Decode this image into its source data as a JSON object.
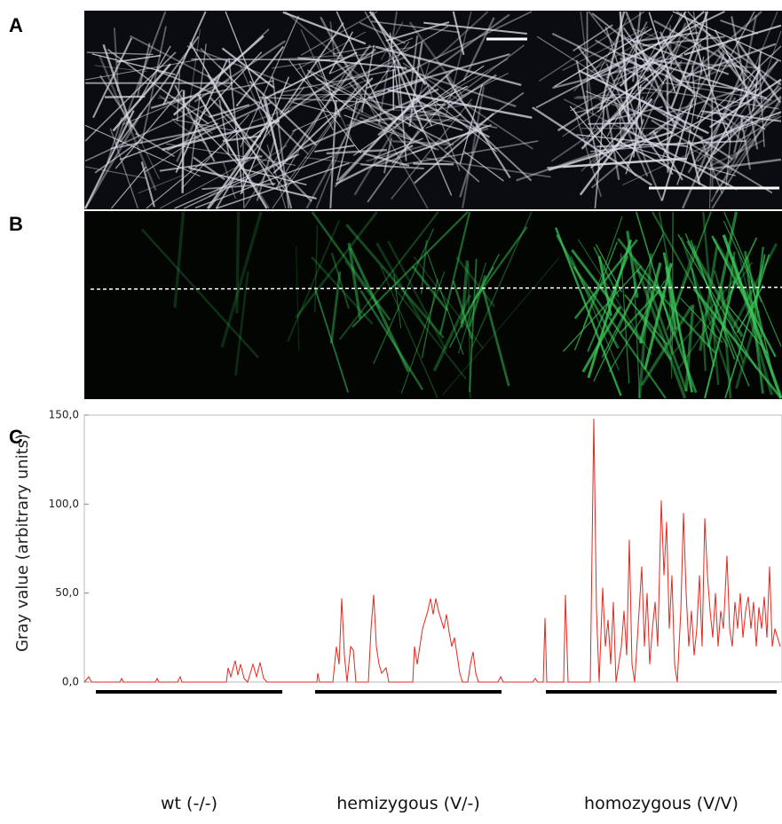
{
  "panel_labels": [
    "A",
    "B",
    "C"
  ],
  "chart_data": {
    "type": "line",
    "ylabel": "Gray value (arbitrary units)",
    "groups": [
      "wt (-/-)",
      "hemizygous (V/-)",
      "homozygous (V/V)"
    ],
    "xlim": [
      0,
      786
    ],
    "ylim": [
      0,
      150
    ],
    "yticks": [
      {
        "value": 0,
        "label": "0,0"
      },
      {
        "value": 50,
        "label": "50,0"
      },
      {
        "value": 100,
        "label": "100,0"
      },
      {
        "value": 150,
        "label": "150,0"
      }
    ],
    "color": "#e8261c",
    "x": [
      0,
      5,
      8,
      40,
      42,
      44,
      80,
      82,
      84,
      105,
      108,
      110,
      160,
      162,
      165,
      170,
      173,
      176,
      180,
      184,
      190,
      194,
      198,
      202,
      206,
      262,
      263,
      265,
      280,
      284,
      287,
      290,
      293,
      296,
      300,
      303,
      306,
      320,
      323,
      326,
      329,
      332,
      335,
      340,
      343,
      370,
      372,
      375,
      378,
      381,
      384,
      387,
      390,
      393,
      396,
      399,
      402,
      405,
      408,
      411,
      414,
      417,
      420,
      423,
      426,
      432,
      435,
      438,
      441,
      444,
      466,
      469,
      472,
      505,
      508,
      511,
      517,
      519,
      521,
      540,
      542,
      545,
      570,
      574,
      577,
      580,
      584,
      587,
      590,
      593,
      596,
      599,
      605,
      608,
      611,
      614,
      617,
      620,
      625,
      628,
      631,
      634,
      637,
      640,
      643,
      646,
      650,
      653,
      656,
      659,
      662,
      665,
      668,
      672,
      675,
      678,
      681,
      684,
      687,
      690,
      693,
      696,
      699,
      702,
      705,
      708,
      711,
      714,
      717,
      720,
      724,
      727,
      730,
      733,
      736,
      739,
      742,
      745,
      748,
      751,
      754,
      757,
      760,
      763,
      766,
      769,
      772,
      775,
      778,
      781,
      784
    ],
    "values": [
      0,
      3,
      0,
      0,
      2,
      0,
      0,
      2,
      0,
      0,
      3,
      0,
      0,
      8,
      3,
      12,
      4,
      10,
      2,
      0,
      10,
      3,
      11,
      2,
      0,
      0,
      5,
      0,
      0,
      20,
      10,
      47,
      15,
      0,
      20,
      18,
      0,
      0,
      30,
      49,
      20,
      10,
      5,
      8,
      0,
      0,
      20,
      10,
      20,
      30,
      35,
      40,
      47,
      38,
      47,
      40,
      35,
      30,
      38,
      28,
      20,
      25,
      15,
      5,
      0,
      0,
      10,
      17,
      5,
      0,
      0,
      3,
      0,
      0,
      2,
      0,
      0,
      36,
      0,
      0,
      49,
      0,
      0,
      148,
      40,
      0,
      53,
      20,
      35,
      10,
      45,
      0,
      20,
      40,
      15,
      80,
      10,
      0,
      40,
      65,
      20,
      50,
      10,
      30,
      45,
      20,
      102,
      60,
      90,
      30,
      60,
      10,
      0,
      40,
      95,
      50,
      20,
      40,
      15,
      30,
      60,
      20,
      92,
      60,
      40,
      25,
      50,
      20,
      40,
      30,
      71,
      30,
      20,
      45,
      30,
      50,
      25,
      40,
      48,
      30,
      45,
      20,
      42,
      30,
      48,
      25,
      65,
      20,
      30,
      25,
      20
    ]
  }
}
